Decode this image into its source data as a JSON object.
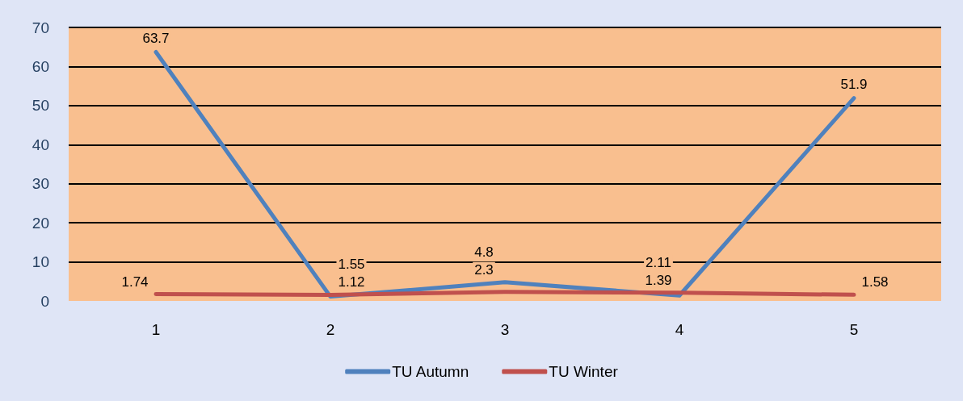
{
  "chart_data": {
    "type": "line",
    "categories": [
      "1",
      "2",
      "3",
      "4",
      "5"
    ],
    "series": [
      {
        "name": "TU Autumn",
        "color": "#4f81bd",
        "values": [
          63.7,
          1.12,
          4.8,
          1.39,
          51.9
        ]
      },
      {
        "name": "TU Winter",
        "color": "#c0504d",
        "values": [
          1.74,
          1.55,
          2.3,
          2.11,
          1.58
        ]
      }
    ],
    "ylim": [
      0,
      70
    ],
    "yticks": [
      0,
      10,
      20,
      30,
      40,
      50,
      60,
      70
    ],
    "grid": "y",
    "legend": "bottom",
    "marker": "none",
    "line_style": "solid",
    "data_labels": true
  }
}
